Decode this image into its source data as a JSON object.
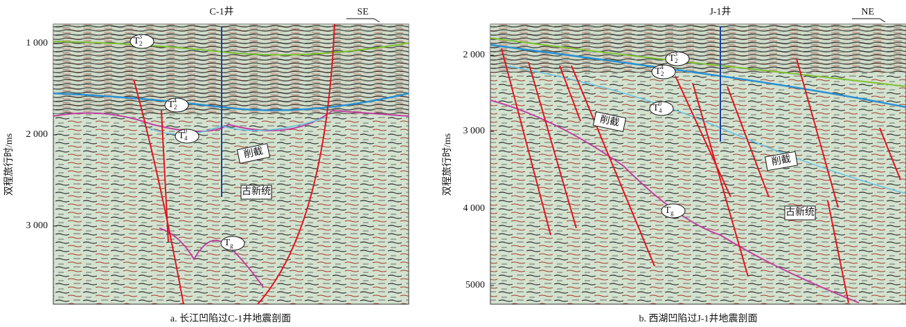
{
  "panels": [
    {
      "well": "C-1井",
      "direction": "SE",
      "axis_label": "双程旅行时/ms",
      "yticks": [
        "1 000",
        "2 000",
        "3 000"
      ],
      "horizons": [
        {
          "base": "T",
          "sub": "2",
          "sup": "3"
        },
        {
          "base": "T",
          "sub": "2",
          "sup": "4"
        },
        {
          "base": "T",
          "sub": "4",
          "sup": "0"
        },
        {
          "base": "T",
          "sub": "g"
        }
      ],
      "annotations": [
        "削截",
        "古新统"
      ],
      "caption": "a. 长江凹陷过C-1井地震剖面"
    },
    {
      "well": "J-1井",
      "direction": "NE",
      "axis_label": "双程旅行时/ms",
      "yticks": [
        "2 000",
        "3 000",
        "4 000",
        "5000"
      ],
      "horizons": [
        {
          "base": "T",
          "sub": "2",
          "sup": "3"
        },
        {
          "base": "T",
          "sub": "2",
          "sup": "4"
        },
        {
          "base": "T",
          "sub": "4",
          "sup": "0"
        },
        {
          "base": "T",
          "sub": "g"
        }
      ],
      "annotations": [
        "削截",
        "削截",
        "古新统"
      ],
      "caption": "b. 西湖凹陷过J-1井地震剖面"
    }
  ]
}
